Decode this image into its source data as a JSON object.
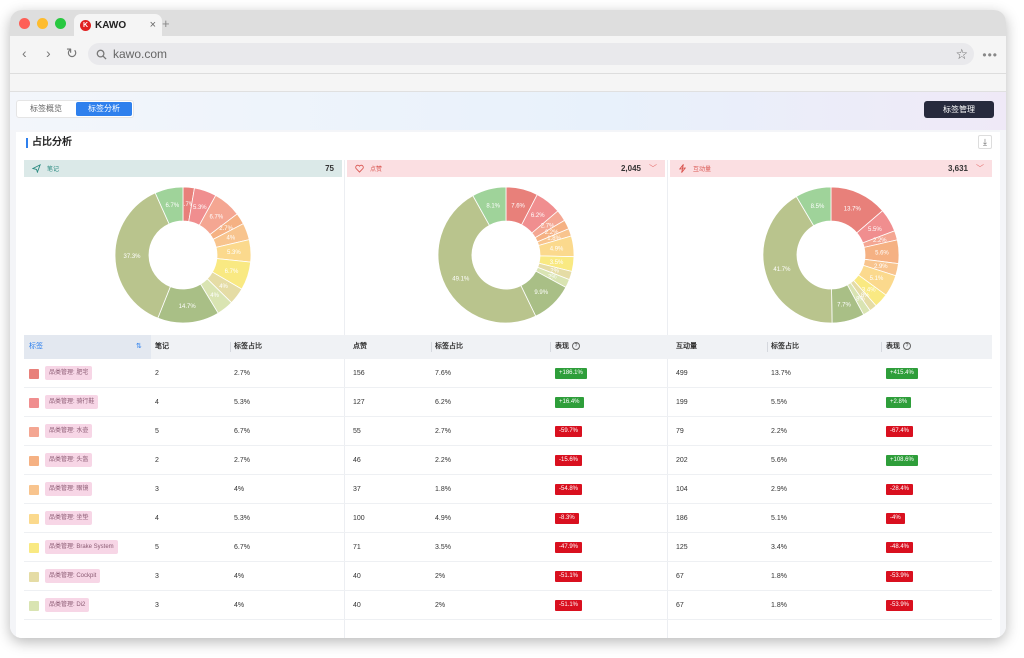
{
  "browser": {
    "tab_title": "KAWO",
    "tab_logo_letter": "K",
    "tab_close": "×",
    "new_tab": "+",
    "url": "kawo.com"
  },
  "header": {
    "seg_tabs": [
      "标签概览",
      "标签分析"
    ],
    "active_tab": 1,
    "manage_label": "标签管理"
  },
  "section": {
    "title": "占比分析"
  },
  "metrics": {
    "notes": {
      "label": "笔记",
      "value": "75",
      "icon": "paper-plane-icon"
    },
    "likes": {
      "label": "点赞",
      "value": "2,045",
      "icon": "heart-icon"
    },
    "interactions": {
      "label": "互动量",
      "value": "3,631",
      "icon": "lightning-icon"
    }
  },
  "colors": [
    "#e8807a",
    "#f08e8f",
    "#f4a692",
    "#f5b183",
    "#f8c48e",
    "#fbd98d",
    "#f9e982",
    "#e5dca5",
    "#d9e4b2",
    "#a9bf86",
    "#b9c48d",
    "#9fd39a"
  ],
  "chart_data": [
    {
      "type": "pie",
      "title": "笔记",
      "values": [
        2.7,
        5.3,
        6.7,
        2.7,
        4,
        5.3,
        6.7,
        4,
        4,
        14.7,
        37.3,
        6.7
      ],
      "labels_shown": [
        "2.7%",
        "5.3%",
        "6.7%",
        "2.7%",
        "4%",
        "5.3%",
        "6.7%",
        "4%",
        "4%",
        "14.7%",
        "37.3%",
        "6.7%"
      ]
    },
    {
      "type": "pie",
      "title": "点赞",
      "values": [
        7.6,
        6.2,
        2.7,
        2.2,
        1.8,
        4.9,
        3.5,
        2,
        2,
        9.9,
        49.1,
        8.1
      ],
      "labels_shown": [
        "7.6%",
        "6.2%",
        "2.7%",
        "2.2%",
        "1.8%",
        "4.9%",
        "3.5%",
        "2%",
        "2%",
        "9.9%",
        "49.1%",
        "8.1%"
      ]
    },
    {
      "type": "pie",
      "title": "互动量",
      "values": [
        13.7,
        5.5,
        2.2,
        5.6,
        2.9,
        5.1,
        3.4,
        1.8,
        1.8,
        7.7,
        41.7,
        8.5
      ],
      "labels_shown": [
        "13.7%",
        "5.5%",
        "2.2%",
        "5.6%",
        "2.9%",
        "5.1%",
        "3.4%",
        "1.8%",
        "1.8%",
        "7.7%",
        "41.7%",
        "8.5%"
      ]
    }
  ],
  "table": {
    "headers": {
      "tag": "标签",
      "notes": "笔记",
      "notes_share": "标签占比",
      "likes": "点赞",
      "likes_share": "标签占比",
      "likes_perf": "表现",
      "inter": "互动量",
      "inter_share": "标签占比",
      "inter_perf": "表现"
    },
    "rows": [
      {
        "tag": "品类管理: 肥宅",
        "notes": "2",
        "notes_share": "2.7%",
        "likes": "156",
        "likes_share": "7.6%",
        "likes_perf": "+186.1%",
        "inter": "499",
        "inter_share": "13.7%",
        "inter_perf": "+415.4%"
      },
      {
        "tag": "品类管理: 骑行鞋",
        "notes": "4",
        "notes_share": "5.3%",
        "likes": "127",
        "likes_share": "6.2%",
        "likes_perf": "+16.4%",
        "inter": "199",
        "inter_share": "5.5%",
        "inter_perf": "+2.8%"
      },
      {
        "tag": "品类管理: 水壶",
        "notes": "5",
        "notes_share": "6.7%",
        "likes": "55",
        "likes_share": "2.7%",
        "likes_perf": "-59.7%",
        "inter": "79",
        "inter_share": "2.2%",
        "inter_perf": "-67.4%"
      },
      {
        "tag": "品类管理: 头盔",
        "notes": "2",
        "notes_share": "2.7%",
        "likes": "46",
        "likes_share": "2.2%",
        "likes_perf": "-15.6%",
        "inter": "202",
        "inter_share": "5.6%",
        "inter_perf": "+108.6%"
      },
      {
        "tag": "品类管理: 眼镜",
        "notes": "3",
        "notes_share": "4%",
        "likes": "37",
        "likes_share": "1.8%",
        "likes_perf": "-54.8%",
        "inter": "104",
        "inter_share": "2.9%",
        "inter_perf": "-28.4%"
      },
      {
        "tag": "品类管理: 坐垫",
        "notes": "4",
        "notes_share": "5.3%",
        "likes": "100",
        "likes_share": "4.9%",
        "likes_perf": "-8.3%",
        "inter": "186",
        "inter_share": "5.1%",
        "inter_perf": "-4%"
      },
      {
        "tag": "品类管理: Brake System",
        "notes": "5",
        "notes_share": "6.7%",
        "likes": "71",
        "likes_share": "3.5%",
        "likes_perf": "-47.9%",
        "inter": "125",
        "inter_share": "3.4%",
        "inter_perf": "-48.4%"
      },
      {
        "tag": "品类管理: Cockpit",
        "notes": "3",
        "notes_share": "4%",
        "likes": "40",
        "likes_share": "2%",
        "likes_perf": "-51.1%",
        "inter": "67",
        "inter_share": "1.8%",
        "inter_perf": "-53.9%"
      },
      {
        "tag": "品类管理: Di2",
        "notes": "3",
        "notes_share": "4%",
        "likes": "40",
        "likes_share": "2%",
        "likes_perf": "-51.1%",
        "inter": "67",
        "inter_share": "1.8%",
        "inter_perf": "-53.9%"
      }
    ]
  }
}
